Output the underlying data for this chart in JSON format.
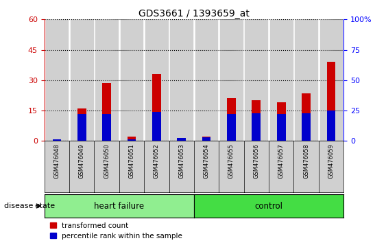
{
  "title": "GDS3661 / 1393659_at",
  "samples": [
    "GSM476048",
    "GSM476049",
    "GSM476050",
    "GSM476051",
    "GSM476052",
    "GSM476053",
    "GSM476054",
    "GSM476055",
    "GSM476056",
    "GSM476057",
    "GSM476058",
    "GSM476059"
  ],
  "red_values": [
    0.5,
    16.0,
    28.5,
    2.0,
    33.0,
    1.5,
    2.0,
    21.0,
    20.0,
    19.0,
    23.5,
    39.0
  ],
  "blue_values_pct": [
    1.5,
    22.0,
    22.0,
    1.5,
    24.0,
    2.5,
    3.0,
    22.0,
    22.5,
    22.0,
    22.5,
    25.0
  ],
  "heart_failure_count": 6,
  "control_count": 6,
  "ylim_left": [
    0,
    60
  ],
  "ylim_right": [
    0,
    100
  ],
  "yticks_left": [
    0,
    15,
    30,
    45,
    60
  ],
  "yticks_right": [
    0,
    25,
    50,
    75,
    100
  ],
  "ytick_labels_right": [
    "0",
    "25",
    "50",
    "75",
    "100%"
  ],
  "red_color": "#cc0000",
  "blue_color": "#0000cc",
  "heart_failure_color": "#90ee90",
  "control_color": "#44dd44",
  "bar_bg_color": "#d0d0d0",
  "legend_red": "transformed count",
  "legend_blue": "percentile rank within the sample",
  "disease_label": "disease state",
  "heart_failure_label": "heart failure",
  "control_label": "control",
  "bar_width": 0.35
}
